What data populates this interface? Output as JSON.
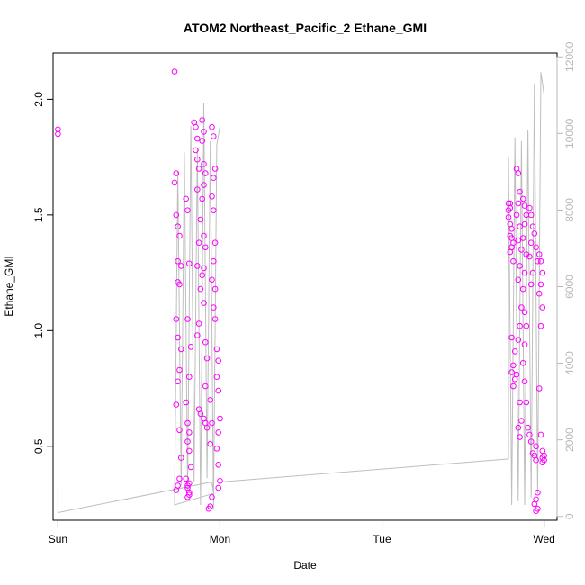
{
  "chart_data": {
    "type": "scatter",
    "title": "ATOM2 Northeast_Pacific_2 Ethane_GMI",
    "xlabel": "Date",
    "ylabel": "Ethane_GMI",
    "x_ticks": [
      "Sun",
      "Mon",
      "Tue",
      "Wed"
    ],
    "y_ticks": [
      "0.5",
      "1.0",
      "1.5",
      "2.0"
    ],
    "y_right_ticks": [
      "0",
      "2000",
      "4000",
      "6000",
      "8000",
      "10000",
      "12000"
    ],
    "xlim": [
      -0.03,
      3.08
    ],
    "ylim": [
      0.18,
      2.2
    ],
    "y_right_lim": [
      -100,
      12100
    ],
    "grid": false,
    "colors": {
      "points": "#ff00ff",
      "altitude_line": "#bebebe",
      "right_axis": "#b8b8b8"
    },
    "series": [
      {
        "type": "scatter",
        "x": [
          0.0,
          0.0,
          0.72,
          0.73,
          0.72,
          0.73,
          0.74,
          0.75,
          0.74,
          0.76,
          0.74,
          0.75,
          0.73,
          0.74,
          0.76,
          0.75,
          0.74,
          0.73,
          0.75,
          0.76,
          0.75,
          0.74,
          0.73,
          0.79,
          0.8,
          0.81,
          0.8,
          0.82,
          0.81,
          0.79,
          0.8,
          0.81,
          0.8,
          0.81,
          0.82,
          0.79,
          0.8,
          0.81,
          0.8,
          0.81,
          0.8,
          0.81,
          0.84,
          0.85,
          0.86,
          0.85,
          0.86,
          0.87,
          0.86,
          0.88,
          0.87,
          0.86,
          0.88,
          0.87,
          0.86,
          0.87,
          0.88,
          0.89,
          0.9,
          0.89,
          0.9,
          0.91,
          0.9,
          0.89,
          0.9,
          0.91,
          0.9,
          0.89,
          0.9,
          0.91,
          0.92,
          0.91,
          0.9,
          0.91,
          0.92,
          0.95,
          0.96,
          0.97,
          0.96,
          0.95,
          0.96,
          0.97,
          0.96,
          0.95,
          0.97,
          0.96,
          0.97,
          0.98,
          0.99,
          0.98,
          0.99,
          1.0,
          0.99,
          0.98,
          0.99,
          1.0,
          0.99,
          0.95,
          0.94,
          0.93,
          0.94,
          0.95,
          0.94,
          2.78,
          2.79,
          2.78,
          2.8,
          2.79,
          2.81,
          2.8,
          2.79,
          2.81,
          2.8,
          2.82,
          2.81,
          2.8,
          2.82,
          2.81,
          2.8,
          2.79,
          2.78,
          2.79,
          2.8,
          2.83,
          2.84,
          2.85,
          2.84,
          2.83,
          2.85,
          2.84,
          2.86,
          2.85,
          2.84,
          2.86,
          2.85,
          2.84,
          2.83,
          2.85,
          2.86,
          2.84,
          2.85,
          2.87,
          2.88,
          2.89,
          2.88,
          2.87,
          2.89,
          2.88,
          2.87,
          2.88,
          2.89,
          2.88,
          2.87,
          2.88,
          2.89,
          2.9,
          2.91,
          2.92,
          2.93,
          2.92,
          2.91,
          2.93,
          2.92,
          2.91,
          2.92,
          2.93,
          2.94,
          2.95,
          2.96,
          2.95,
          2.94,
          2.95,
          2.96,
          2.95,
          2.94,
          2.96,
          2.95,
          2.97,
          2.98,
          2.99,
          2.98,
          2.97,
          2.99,
          2.98,
          2.97,
          2.98,
          2.99,
          3.0,
          2.99,
          3.0,
          2.99
        ],
        "y": [
          1.87,
          1.85,
          2.12,
          1.68,
          1.64,
          1.5,
          1.45,
          1.41,
          1.3,
          1.28,
          1.21,
          1.2,
          1.05,
          0.97,
          0.92,
          0.83,
          0.78,
          0.68,
          0.57,
          0.45,
          0.36,
          0.33,
          0.31,
          1.57,
          1.52,
          1.29,
          1.05,
          0.93,
          0.8,
          0.69,
          0.6,
          0.56,
          0.52,
          0.48,
          0.41,
          0.36,
          0.33,
          0.29,
          0.28,
          0.34,
          0.32,
          0.3,
          1.9,
          1.88,
          1.83,
          1.78,
          1.74,
          1.7,
          1.61,
          1.48,
          1.38,
          1.28,
          1.18,
          1.03,
          0.98,
          0.66,
          0.64,
          1.91,
          1.86,
          1.82,
          1.72,
          1.68,
          1.63,
          1.57,
          1.41,
          1.36,
          1.27,
          1.24,
          1.12,
          0.95,
          0.88,
          0.76,
          0.62,
          0.6,
          0.58,
          1.88,
          1.84,
          1.7,
          1.66,
          1.58,
          1.52,
          1.38,
          1.3,
          1.22,
          1.18,
          1.1,
          1.05,
          0.92,
          0.87,
          0.8,
          0.74,
          0.62,
          0.56,
          0.49,
          0.42,
          0.35,
          0.32,
          0.28,
          0.24,
          0.23,
          0.51,
          0.6,
          0.7,
          1.55,
          1.53,
          1.49,
          1.44,
          1.41,
          1.38,
          1.36,
          1.34,
          1.3,
          0.97,
          0.91,
          0.85,
          0.82,
          0.79,
          0.76,
          1.4,
          1.46,
          1.52,
          1.55,
          1.36,
          1.7,
          1.68,
          1.6,
          1.55,
          1.5,
          1.45,
          1.39,
          1.35,
          1.28,
          1.22,
          1.1,
          1.02,
          0.96,
          0.81,
          0.69,
          0.61,
          0.58,
          0.54,
          1.57,
          1.54,
          1.5,
          1.46,
          1.4,
          1.33,
          1.25,
          1.18,
          1.08,
          1.02,
          0.94,
          0.86,
          0.78,
          0.69,
          0.58,
          1.53,
          1.5,
          1.45,
          1.38,
          1.32,
          1.25,
          1.2,
          0.55,
          0.52,
          0.47,
          1.42,
          1.36,
          1.3,
          0.5,
          0.46,
          0.44,
          0.3,
          0.27,
          0.25,
          0.23,
          0.22,
          1.33,
          1.3,
          1.25,
          1.2,
          1.16,
          1.1,
          1.02,
          0.75,
          0.55,
          0.48,
          0.46,
          0.45,
          0.44,
          0.43
        ]
      },
      {
        "type": "line",
        "axis": "right",
        "x": [
          0.0,
          0.0,
          0.95,
          0.96,
          0.72,
          0.74,
          0.76,
          0.78,
          0.8,
          0.82,
          0.84,
          0.86,
          0.88,
          0.9,
          0.92,
          0.94,
          0.96,
          0.98,
          1.0,
          1.0,
          2.78,
          2.78,
          2.8,
          2.82,
          2.84,
          2.86,
          2.88,
          2.9,
          2.92,
          2.94,
          2.96,
          2.98,
          3.0
        ],
        "y": [
          800,
          100,
          900,
          600,
          300,
          9000,
          800,
          9500,
          700,
          10200,
          900,
          9600,
          300,
          10800,
          1000,
          9800,
          200,
          9700,
          10200,
          900,
          1500,
          9400,
          300,
          9900,
          400,
          9800,
          300,
          10100,
          500,
          11300,
          600,
          11600,
          11000
        ]
      }
    ]
  }
}
